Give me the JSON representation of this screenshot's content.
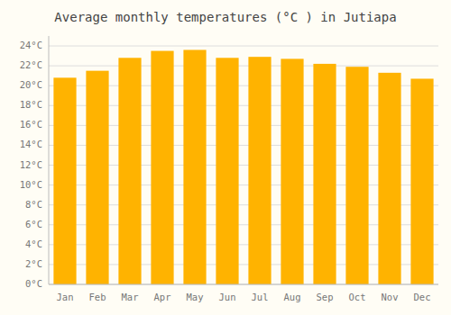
{
  "chart_data": {
    "type": "bar",
    "title": "Average monthly temperatures (°C ) in Jutiapa",
    "categories": [
      "Jan",
      "Feb",
      "Mar",
      "Apr",
      "May",
      "Jun",
      "Jul",
      "Aug",
      "Sep",
      "Oct",
      "Nov",
      "Dec"
    ],
    "values": [
      20.8,
      21.5,
      22.8,
      23.5,
      23.6,
      22.8,
      22.9,
      22.7,
      22.2,
      21.9,
      21.3,
      20.7
    ],
    "color": "#FFB300",
    "ylim": [
      0,
      25
    ],
    "yticks": [
      {
        "value": 0,
        "label": "0°C"
      },
      {
        "value": 2,
        "label": "2°C"
      },
      {
        "value": 4,
        "label": "4°C"
      },
      {
        "value": 6,
        "label": "6°C"
      },
      {
        "value": 8,
        "label": "8°C"
      },
      {
        "value": 10,
        "label": "10°C"
      },
      {
        "value": 12,
        "label": "12°C"
      },
      {
        "value": 14,
        "label": "14°C"
      },
      {
        "value": 16,
        "label": "16°C"
      },
      {
        "value": 18,
        "label": "18°C"
      },
      {
        "value": 20,
        "label": "20°C"
      },
      {
        "value": 22,
        "label": "22°C"
      },
      {
        "value": 24,
        "label": "24°C"
      }
    ],
    "grid": true
  }
}
